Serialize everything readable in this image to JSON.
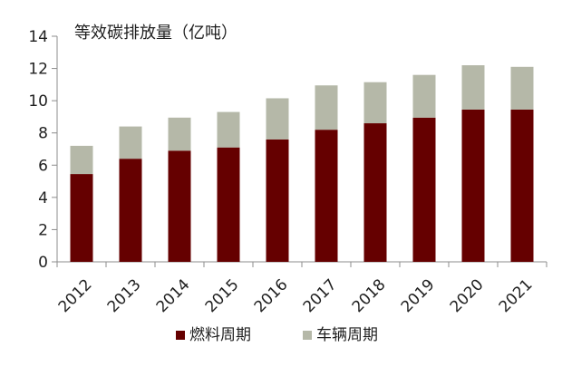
{
  "chart_data": {
    "type": "bar",
    "stacked": true,
    "title": "等效碳排放量（亿吨）",
    "categories": [
      "2012",
      "2013",
      "2014",
      "2015",
      "2016",
      "2017",
      "2018",
      "2019",
      "2020",
      "2021"
    ],
    "series": [
      {
        "name": "燃料周期",
        "values": [
          5.45,
          6.4,
          6.9,
          7.1,
          7.6,
          8.2,
          8.6,
          8.95,
          9.45,
          9.45
        ],
        "color": "#650000"
      },
      {
        "name": "车辆周期",
        "values": [
          1.75,
          2.0,
          2.05,
          2.2,
          2.55,
          2.75,
          2.55,
          2.65,
          2.75,
          2.65
        ],
        "color": "#b5b8a8"
      }
    ],
    "yticks": [
      "0",
      "2",
      "4",
      "6",
      "8",
      "10",
      "12",
      "14"
    ],
    "ylim": [
      0,
      14
    ],
    "grid": false,
    "legend_position": "bottom-center"
  }
}
